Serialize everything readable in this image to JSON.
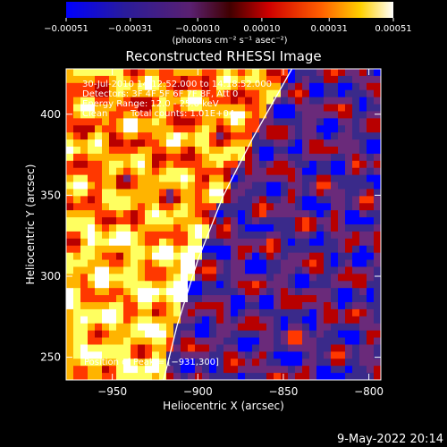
{
  "chart_data": {
    "type": "heatmap",
    "title": "Reconstructed RHESSI Image",
    "xlabel": "Heliocentric X (arcsec)",
    "ylabel": "Heliocentric Y (arcsec)",
    "xlim": [
      -977,
      -793
    ],
    "ylim": [
      236,
      428
    ],
    "x_ticks": [
      -950,
      -900,
      -850,
      -800
    ],
    "x_tick_labels": [
      "−950",
      "−900",
      "−850",
      "−800"
    ],
    "y_ticks": [
      250,
      300,
      350,
      400
    ],
    "y_tick_labels": [
      "250",
      "300",
      "350",
      "400"
    ],
    "colorbar": {
      "tick_labels": [
        "−0.00051",
        "−0.00031",
        "−0.00010",
        "0.00010",
        "0.00031",
        "0.00051"
      ],
      "ticks": [
        -0.00051,
        -0.00031,
        -0.0001,
        0.0001,
        0.00031,
        0.00051
      ],
      "range": [
        -0.00051,
        0.00051
      ],
      "unit_label": "(photons cm⁻² s⁻¹ asec⁻²)",
      "colors": [
        "#0000ff",
        "#3a2a8a",
        "#6a2a7a",
        "#b80000",
        "#ff3800",
        "#ffb400",
        "#ffff60",
        "#ffffff"
      ]
    },
    "annotations": {
      "time_range": "30-Jul-2010 14:12:52.000 to 14:18:52.000",
      "detectors": "Detectors: 3F 4F 5F 6F 7F 8F, Att 0",
      "energy": "Energy Range: 12.0 - 25.0 keV",
      "algorithm": "Clean",
      "counts": "Total counts: 1.01E+04",
      "peak": "Position of Peak = [−931,300]"
    },
    "limb_curve": [
      [
        -920,
        236
      ],
      [
        -912,
        270
      ],
      [
        -900,
        310
      ],
      [
        -885,
        350
      ],
      [
        -868,
        385
      ],
      [
        -845,
        428
      ]
    ],
    "grid": false
  },
  "footer_timestamp": "9-May-2022 20:14"
}
